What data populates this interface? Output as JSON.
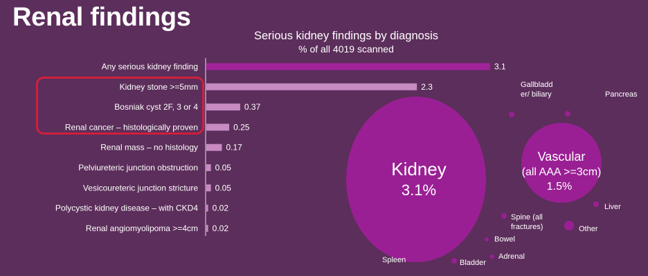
{
  "slide": {
    "title": "Renal findings"
  },
  "chart_data": [
    {
      "type": "bar",
      "orientation": "horizontal",
      "title": "Serious kidney findings by diagnosis",
      "subtitle": "% of all 4019 scanned",
      "categories": [
        "Any serious kidney finding",
        "Kidney stone >=5mm",
        "Bosniak cyst 2F, 3 or 4",
        "Renal cancer – histologically proven",
        "Renal mass – no histology",
        "Pelviureteric junction obstruction",
        "Vesicoureteric junction stricture",
        "Polycystic kidney disease – with CKD4",
        "Renal angiomyolipoma >=4cm"
      ],
      "values": [
        3.1,
        2.3,
        0.37,
        0.25,
        0.17,
        0.05,
        0.05,
        0.02,
        0.02
      ],
      "value_labels": [
        "3.1",
        "2.3",
        "0.37",
        "0.25",
        "0.17",
        "0.05",
        "0.05",
        "0.02",
        "0.02"
      ],
      "highlighted_categories": [
        "Kidney stone >=5mm",
        "Bosniak cyst 2F, 3 or 4",
        "Renal cancer – histologically proven"
      ],
      "xlim": [
        0,
        3.1
      ],
      "grid": false,
      "colors": {
        "first_bar": "#a0239a",
        "other_bars": "#c78bc1",
        "highlight_box": "#d01f3c"
      }
    },
    {
      "type": "bubble",
      "bubbles": [
        {
          "label": "Kidney",
          "value_label": "3.1%",
          "value": 3.1
        },
        {
          "label": "Vascular (all AAA >=3cm)",
          "value_label": "1.5%",
          "value": 1.5
        },
        {
          "label": "Gallbladder/ biliary"
        },
        {
          "label": "Pancreas"
        },
        {
          "label": "Liver"
        },
        {
          "label": "Spine (all fractures)"
        },
        {
          "label": "Other"
        },
        {
          "label": "Bowel"
        },
        {
          "label": "Adrenal"
        },
        {
          "label": "Bladder"
        },
        {
          "label": "Spleen"
        }
      ],
      "bubble_text": {
        "kidney_name": "Kidney",
        "kidney_value": "3.1%",
        "vascular_line1": "Vascular",
        "vascular_line2": "(all AAA >=3cm)",
        "vascular_value": "1.5%",
        "gallbladder_line1": "Gallbladd",
        "gallbladder_line2": "er/ biliary",
        "pancreas": "Pancreas",
        "liver": "Liver",
        "spine_line1": "Spine (all",
        "spine_line2": "fractures)",
        "other": "Other",
        "bowel": "Bowel",
        "adrenal": "Adrenal",
        "bladder": "Bladder",
        "spleen": "Spleen"
      },
      "colors": {
        "bubble": "#9a1f94",
        "text": "#ffffff"
      }
    }
  ]
}
